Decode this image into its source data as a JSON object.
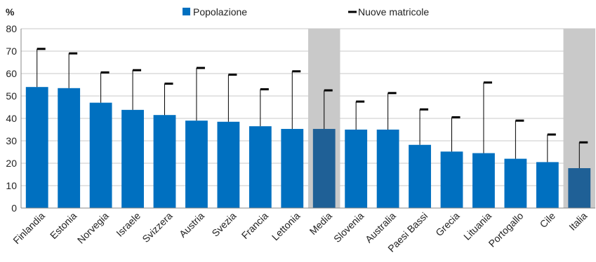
{
  "chart_data": {
    "type": "bar",
    "title": "",
    "ylabel": "%",
    "xlabel": "",
    "ylim": [
      0,
      80
    ],
    "yticks": [
      0,
      10,
      20,
      30,
      40,
      50,
      60,
      70,
      80
    ],
    "grid": true,
    "legend_position": "top",
    "categories": [
      "Finlandia",
      "Estonia",
      "Norvegia",
      "Israele",
      "Svizzera",
      "Austria",
      "Svezia",
      "Francia",
      "Lettonia",
      "Media",
      "Slovenia",
      "Australia",
      "Paesi Bassi",
      "Grecia",
      "Lituania",
      "Portogallo",
      "Cile",
      "Italia"
    ],
    "highlighted_categories": [
      "Media",
      "Italia"
    ],
    "series": [
      {
        "name": "Popolazione",
        "kind": "bar",
        "color": "#0070C0",
        "highlight_color": "#1F6096",
        "values": [
          54,
          53.5,
          47,
          43.8,
          41.5,
          39,
          38.5,
          36.5,
          35.3,
          35.3,
          35,
          35,
          28.2,
          25.2,
          24.5,
          22,
          20.5,
          17.8
        ]
      },
      {
        "name": "Nuove matricole",
        "kind": "marker",
        "color": "#000000",
        "values": [
          71,
          69,
          60.5,
          61.5,
          55.5,
          62.5,
          59.5,
          53,
          61,
          52.5,
          47.5,
          51.3,
          44,
          40.5,
          56,
          39,
          32.8,
          29.3
        ]
      }
    ]
  }
}
